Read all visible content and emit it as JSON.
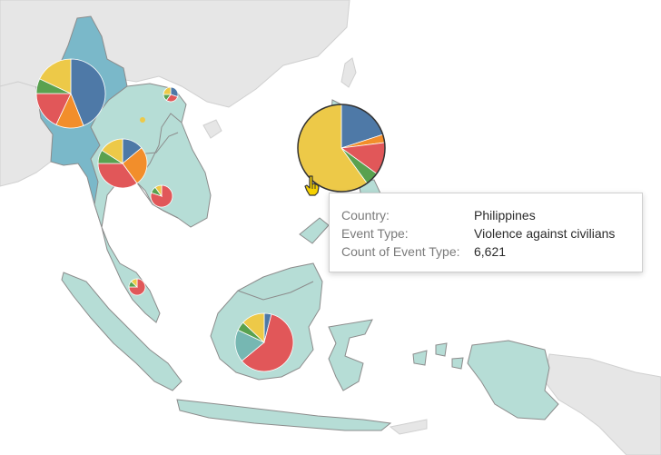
{
  "tooltip": {
    "rows": [
      {
        "label": "Country:",
        "value": "Philippines"
      },
      {
        "label": "Event Type:",
        "value": "Violence against civilians"
      },
      {
        "label": "Count of Event Type:",
        "value": "6,621"
      }
    ]
  },
  "colors": {
    "ocean": "#ffffff",
    "background_land": "#e6e6e6",
    "highlight_land": "#b6ddd6",
    "myanmar_land": "#7ab8c9",
    "border": "#8c8c8c",
    "series": {
      "blue": "#4e79a7",
      "orange": "#f28e2b",
      "red": "#e15759",
      "teal": "#76b7b2",
      "green": "#59a14f",
      "yellow": "#edc948"
    }
  },
  "chart_data": {
    "type": "pie",
    "marks": [
      {
        "id": "myanmar",
        "slices": [
          {
            "color": "blue",
            "share": 0.44
          },
          {
            "color": "orange",
            "share": 0.13
          },
          {
            "color": "red",
            "share": 0.18
          },
          {
            "color": "green",
            "share": 0.07
          },
          {
            "color": "yellow",
            "share": 0.18
          }
        ]
      },
      {
        "id": "vietnam",
        "slices": [
          {
            "color": "blue",
            "share": 0.3
          },
          {
            "color": "red",
            "share": 0.3
          },
          {
            "color": "green",
            "share": 0.15
          },
          {
            "color": "yellow",
            "share": 0.25
          }
        ]
      },
      {
        "id": "laos",
        "slices": [
          {
            "color": "yellow",
            "share": 1.0
          }
        ]
      },
      {
        "id": "thailand",
        "slices": [
          {
            "color": "blue",
            "share": 0.14
          },
          {
            "color": "orange",
            "share": 0.26
          },
          {
            "color": "red",
            "share": 0.35
          },
          {
            "color": "green",
            "share": 0.09
          },
          {
            "color": "yellow",
            "share": 0.16
          }
        ]
      },
      {
        "id": "cambodia",
        "slices": [
          {
            "color": "red",
            "share": 0.8
          },
          {
            "color": "green",
            "share": 0.1
          },
          {
            "color": "yellow",
            "share": 0.1
          }
        ]
      },
      {
        "id": "malaysia",
        "slices": [
          {
            "color": "red",
            "share": 0.75
          },
          {
            "color": "green",
            "share": 0.12
          },
          {
            "color": "yellow",
            "share": 0.13
          }
        ]
      },
      {
        "id": "philippines",
        "slices": [
          {
            "color": "blue",
            "share": 0.2
          },
          {
            "color": "orange",
            "share": 0.03
          },
          {
            "color": "red",
            "share": 0.12
          },
          {
            "color": "green",
            "share": 0.05
          },
          {
            "color": "yellow",
            "share": 0.6
          }
        ]
      },
      {
        "id": "indonesia",
        "slices": [
          {
            "color": "blue",
            "share": 0.04
          },
          {
            "color": "red",
            "share": 0.6
          },
          {
            "color": "teal",
            "share": 0.18
          },
          {
            "color": "green",
            "share": 0.05
          },
          {
            "color": "yellow",
            "share": 0.13
          }
        ]
      }
    ]
  }
}
